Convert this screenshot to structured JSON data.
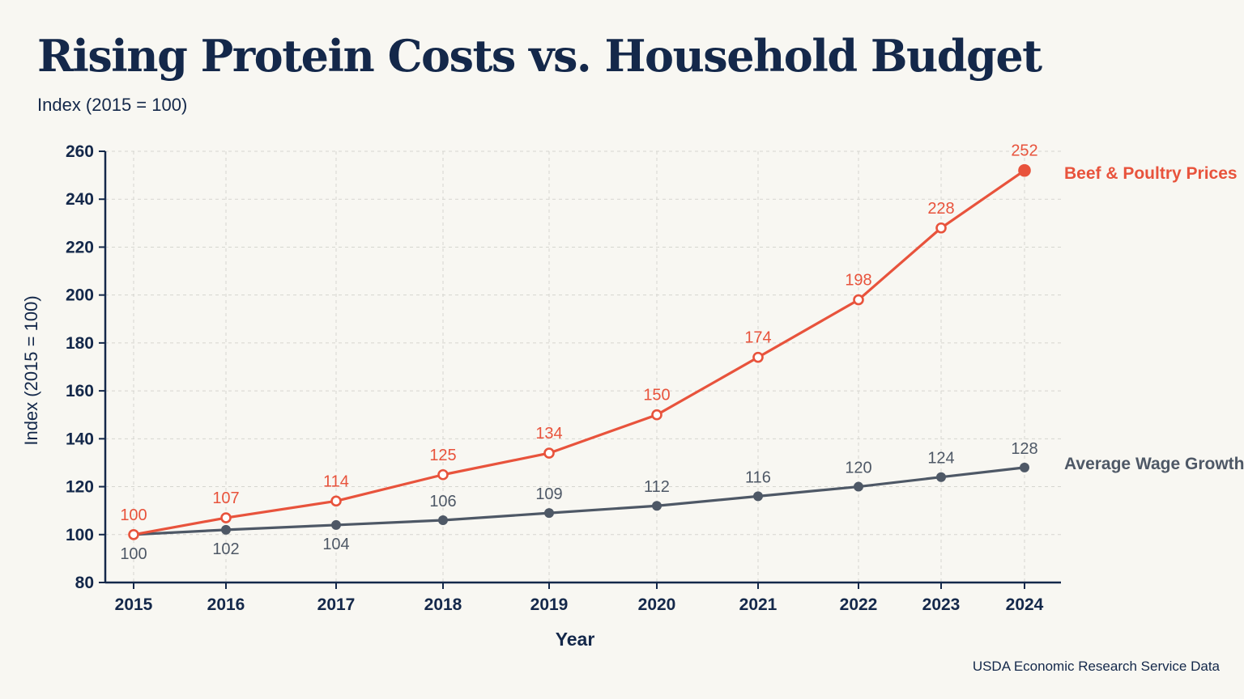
{
  "title": "Rising Protein Costs vs. Household Budget",
  "subtitle": "Index (2015 = 100)",
  "source": "USDA Economic Research Service Data",
  "chart_data": {
    "type": "line",
    "title": "Rising Protein Costs vs. Household Budget",
    "subtitle": "Index (2015 = 100)",
    "xlabel": "Year",
    "ylabel": "Index (2015 = 100)",
    "x": [
      "2015",
      "2016",
      "2017",
      "2018",
      "2019",
      "2020",
      "2021",
      "2022",
      "2023",
      "2024"
    ],
    "ylim": [
      80,
      260
    ],
    "yticks": [
      80,
      100,
      120,
      140,
      160,
      180,
      200,
      220,
      240,
      260
    ],
    "grid": true,
    "legend": "direct labels at right end of lines",
    "series": [
      {
        "name": "Beef & Poultry Prices",
        "color": "#e8533c",
        "values": [
          100,
          107,
          114,
          125,
          134,
          150,
          174,
          198,
          228,
          252
        ],
        "labels": [
          "100",
          "107",
          "114",
          "125",
          "134",
          "150",
          "174",
          "198",
          "228",
          "252"
        ]
      },
      {
        "name": "Average Wage Growth",
        "color": "#4e5866",
        "values": [
          100,
          102,
          104,
          106,
          109,
          112,
          116,
          120,
          124,
          128
        ],
        "labels": [
          "100",
          "102",
          "104",
          "106",
          "109",
          "112",
          "116",
          "120",
          "124",
          "128"
        ]
      }
    ]
  }
}
